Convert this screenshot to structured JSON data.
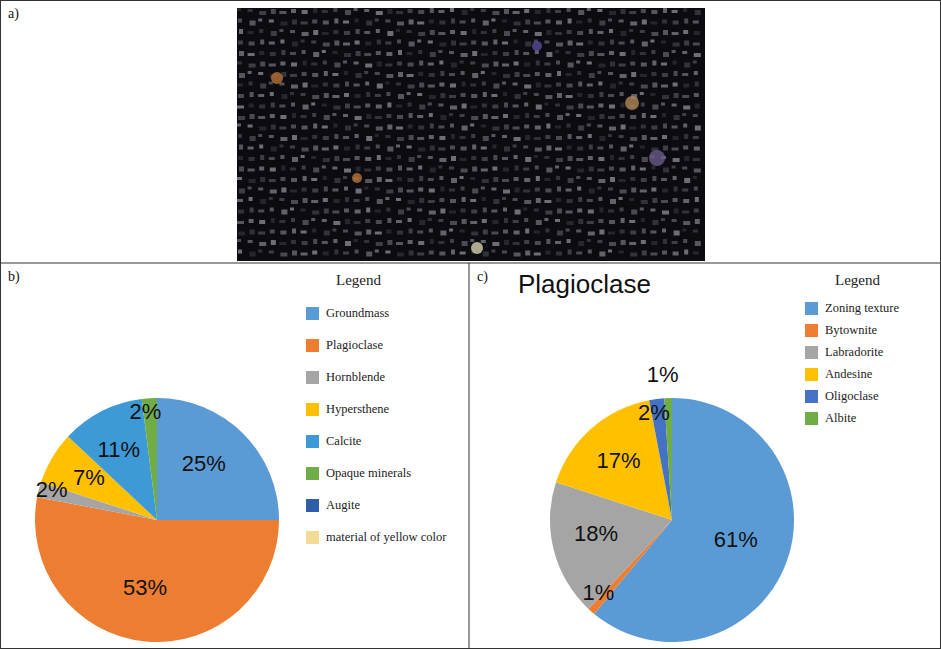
{
  "panel_labels": [
    "a)",
    "b)",
    "c)"
  ],
  "chart_data": [
    {
      "type": "pie",
      "categories": [
        "Groundmass",
        "Plagioclase",
        "Hornblende",
        "Hypersthene",
        "Calcite",
        "Opaque minerals",
        "Augite",
        "material of yellow color"
      ],
      "values": [
        25,
        53,
        2,
        7,
        11,
        2,
        0,
        0
      ],
      "value_labels": [
        "25%",
        "53%",
        "2%",
        "7%",
        "11%",
        "2%",
        null,
        null
      ],
      "colors": [
        "#5b9bd5",
        "#ed7d31",
        "#a5a5a5",
        "#ffc000",
        "#3d9ad6",
        "#70ad47",
        "#2e5ea8",
        "#f5dc96"
      ],
      "data_labels": true,
      "legend": "right",
      "annotations": [
        "Legend"
      ]
    },
    {
      "type": "pie",
      "title": "Plagioclase",
      "categories": [
        "Zoning texture",
        "Bytownite",
        "Labradorite",
        "Andesine",
        "Oligoclase",
        "Albite"
      ],
      "values": [
        61,
        1,
        18,
        17,
        2,
        1
      ],
      "value_labels": [
        "61%",
        "1%",
        "18%",
        "17%",
        "2%",
        "1%"
      ],
      "colors": [
        "#5b9bd5",
        "#ed7d31",
        "#a5a5a5",
        "#ffc000",
        "#4472c4",
        "#70ad47"
      ],
      "data_labels": true,
      "legend": "right",
      "annotations": [
        "Legend"
      ]
    }
  ]
}
